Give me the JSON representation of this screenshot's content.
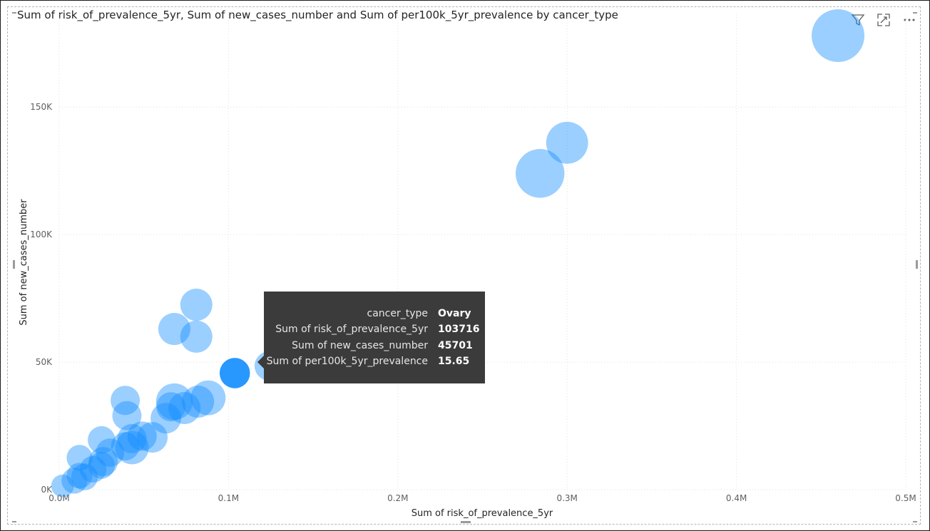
{
  "visual": {
    "title": "Sum of risk_of_prevalence_5yr, Sum of new_cases_number and Sum of per100k_5yr_prevalence by cancer_type",
    "icons": [
      "filter-icon",
      "focus-mode-icon",
      "more-options-icon"
    ]
  },
  "chart_data": {
    "type": "scatter",
    "title": "Sum of risk_of_prevalence_5yr, Sum of new_cases_number and Sum of per100k_5yr_prevalence by cancer_type",
    "xlabel": "Sum of risk_of_prevalence_5yr",
    "ylabel": "Sum of new_cases_number",
    "xlim": [
      0,
      500000
    ],
    "ylim": [
      0,
      178000
    ],
    "x_ticks": [
      0,
      100000,
      200000,
      300000,
      400000,
      500000
    ],
    "x_tick_labels": [
      "0.0M",
      "0.1M",
      "0.2M",
      "0.3M",
      "0.4M",
      "0.5M"
    ],
    "y_ticks": [
      0,
      50000,
      100000,
      150000
    ],
    "y_tick_labels": [
      "0K",
      "50K",
      "100K",
      "150K"
    ],
    "grid": true,
    "size_field": "Sum of per100k_5yr_prevalence",
    "color": "#118DFF",
    "highlight_color": "#118DFF",
    "points": [
      {
        "x": 460000,
        "y": 178000,
        "size": 60
      },
      {
        "x": 284000,
        "y": 124000,
        "size": 50
      },
      {
        "x": 300000,
        "y": 136000,
        "size": 35
      },
      {
        "x": 81000,
        "y": 72500,
        "size": 18
      },
      {
        "x": 68000,
        "y": 63000,
        "size": 18
      },
      {
        "x": 81000,
        "y": 60000,
        "size": 18
      },
      {
        "x": 103716,
        "y": 45701,
        "size": 15.65,
        "highlight": true
      },
      {
        "x": 124000,
        "y": 48500,
        "size": 14
      },
      {
        "x": 88000,
        "y": 36000,
        "size": 22
      },
      {
        "x": 68000,
        "y": 34500,
        "size": 25
      },
      {
        "x": 74000,
        "y": 32000,
        "size": 18
      },
      {
        "x": 66000,
        "y": 32500,
        "size": 14
      },
      {
        "x": 82000,
        "y": 34500,
        "size": 18
      },
      {
        "x": 63000,
        "y": 28000,
        "size": 16
      },
      {
        "x": 39000,
        "y": 35000,
        "size": 14
      },
      {
        "x": 40000,
        "y": 29000,
        "size": 14
      },
      {
        "x": 49000,
        "y": 21000,
        "size": 14
      },
      {
        "x": 55000,
        "y": 20500,
        "size": 16
      },
      {
        "x": 43000,
        "y": 20000,
        "size": 14
      },
      {
        "x": 43000,
        "y": 16500,
        "size": 20
      },
      {
        "x": 39000,
        "y": 17000,
        "size": 13
      },
      {
        "x": 25000,
        "y": 19500,
        "size": 12
      },
      {
        "x": 30000,
        "y": 14500,
        "size": 13
      },
      {
        "x": 26000,
        "y": 11000,
        "size": 14
      },
      {
        "x": 25000,
        "y": 9500,
        "size": 11
      },
      {
        "x": 20000,
        "y": 8000,
        "size": 11
      },
      {
        "x": 12000,
        "y": 12500,
        "size": 10
      },
      {
        "x": 15000,
        "y": 5000,
        "size": 11
      },
      {
        "x": 12000,
        "y": 5500,
        "size": 10
      },
      {
        "x": 9000,
        "y": 3500,
        "size": 10
      },
      {
        "x": 2000,
        "y": 1500,
        "size": 7
      }
    ]
  },
  "tooltip": {
    "rows": [
      {
        "label": "cancer_type",
        "value": "Ovary"
      },
      {
        "label": "Sum of risk_of_prevalence_5yr",
        "value": "103716"
      },
      {
        "label": "Sum of new_cases_number",
        "value": "45701"
      },
      {
        "label": "Sum of per100k_5yr_prevalence",
        "value": "15.65"
      }
    ]
  }
}
